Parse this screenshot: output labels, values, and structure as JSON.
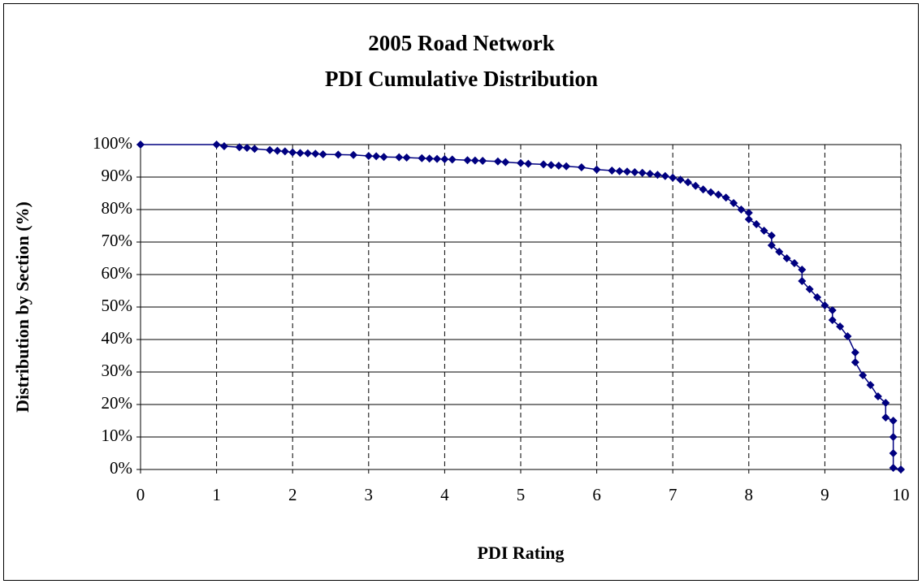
{
  "chart_data": {
    "type": "line",
    "title": "2005 Road Network",
    "subtitle": "PDI Cumulative Distribution",
    "x_label": "PDI Rating",
    "y_label": "Distribution by Section (%)",
    "xlim": [
      0,
      10
    ],
    "xticks": [
      0,
      1,
      2,
      3,
      4,
      5,
      6,
      7,
      8,
      9,
      10
    ],
    "ylim": [
      0,
      100
    ],
    "yticks": [
      {
        "value": 0,
        "label": "0%"
      },
      {
        "value": 10,
        "label": "10%"
      },
      {
        "value": 20,
        "label": "20%"
      },
      {
        "value": 30,
        "label": "30%"
      },
      {
        "value": 40,
        "label": "40%"
      },
      {
        "value": 50,
        "label": "50%"
      },
      {
        "value": 60,
        "label": "60%"
      },
      {
        "value": 70,
        "label": "70%"
      },
      {
        "value": 80,
        "label": "80%"
      },
      {
        "value": 90,
        "label": "90%"
      },
      {
        "value": 100,
        "label": "100%"
      }
    ],
    "grid": true,
    "series": [
      {
        "color": "#000080",
        "x": [
          0,
          1,
          1.1,
          1.3,
          1.4,
          1.5,
          1.7,
          1.8,
          1.9,
          2.0,
          2.1,
          2.2,
          2.3,
          2.4,
          2.6,
          2.8,
          3.0,
          3.1,
          3.2,
          3.4,
          3.5,
          3.7,
          3.8,
          3.9,
          4.0,
          4.1,
          4.3,
          4.4,
          4.5,
          4.7,
          4.8,
          5.0,
          5.1,
          5.3,
          5.4,
          5.5,
          5.6,
          5.8,
          6.0,
          6.2,
          6.3,
          6.4,
          6.5,
          6.6,
          6.7,
          6.8,
          6.9,
          7.0,
          7.1,
          7.2,
          7.3,
          7.4,
          7.5,
          7.6,
          7.7,
          7.8,
          7.9,
          8.0,
          8.0,
          8.1,
          8.2,
          8.3,
          8.3,
          8.4,
          8.5,
          8.6,
          8.7,
          8.7,
          8.8,
          8.9,
          9.0,
          9.1,
          9.1,
          9.2,
          9.3,
          9.4,
          9.4,
          9.5,
          9.6,
          9.7,
          9.8,
          9.8,
          9.9,
          9.9,
          9.9,
          9.9,
          10
        ],
        "values": [
          100,
          100,
          99.5,
          99.2,
          99,
          98.7,
          98.3,
          98.1,
          97.9,
          97.6,
          97.4,
          97.3,
          97.2,
          97.0,
          96.9,
          96.8,
          96.5,
          96.4,
          96.2,
          96.1,
          96.0,
          95.8,
          95.7,
          95.6,
          95.5,
          95.4,
          95.2,
          95.1,
          95.0,
          94.8,
          94.6,
          94.3,
          94.1,
          93.9,
          93.7,
          93.5,
          93.3,
          93.0,
          92.3,
          92.0,
          91.8,
          91.7,
          91.5,
          91.3,
          91.0,
          90.7,
          90.3,
          89.8,
          89.2,
          88.4,
          87.3,
          86.2,
          85.3,
          84.6,
          83.7,
          82.0,
          80.0,
          79.0,
          77.0,
          75.5,
          73.5,
          72.0,
          69.0,
          67.0,
          65.0,
          63.5,
          61.5,
          58.0,
          55.5,
          53.0,
          50.5,
          49.0,
          46.0,
          44.0,
          41.0,
          36.0,
          33.0,
          29.0,
          26.0,
          22.5,
          20.5,
          16.0,
          15.0,
          10.0,
          5.0,
          0.5,
          0
        ]
      }
    ]
  }
}
